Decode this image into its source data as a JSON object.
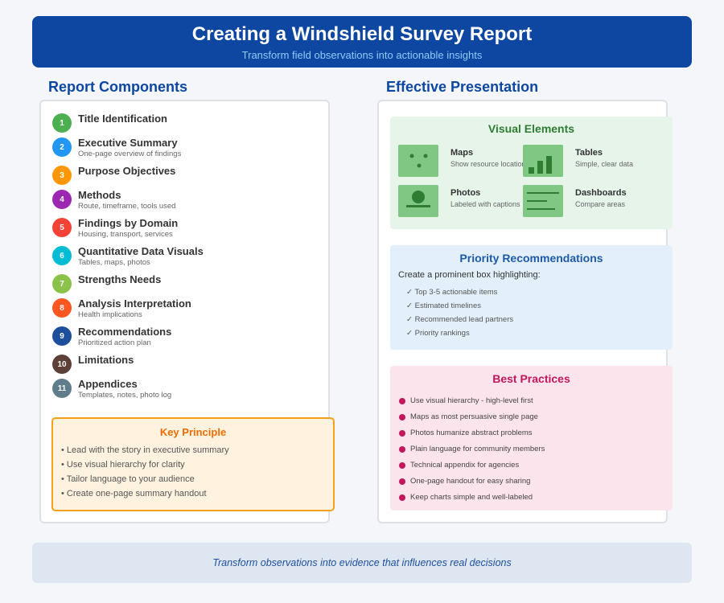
{
  "header": {
    "title": "Creating a Windshield Survey Report",
    "subtitle": "Transform field observations into actionable insights"
  },
  "left": {
    "heading": "Report Components",
    "components": [
      {
        "num": "1",
        "title": "Title Identification",
        "sub": "",
        "color": "#4caf50"
      },
      {
        "num": "2",
        "title": "Executive Summary",
        "sub": "One-page overview of findings",
        "color": "#2196f3"
      },
      {
        "num": "3",
        "title": "Purpose Objectives",
        "sub": "",
        "color": "#ff9800"
      },
      {
        "num": "4",
        "title": "Methods",
        "sub": "Route, timeframe, tools used",
        "color": "#9c27b0"
      },
      {
        "num": "5",
        "title": "Findings by Domain",
        "sub": "Housing, transport, services",
        "color": "#f44336"
      },
      {
        "num": "6",
        "title": "Quantitative Data Visuals",
        "sub": "Tables, maps, photos",
        "color": "#00bcd4"
      },
      {
        "num": "7",
        "title": "Strengths Needs",
        "sub": "",
        "color": "#8bc34a"
      },
      {
        "num": "8",
        "title": "Analysis Interpretation",
        "sub": "Health implications",
        "color": "#ff5722"
      },
      {
        "num": "9",
        "title": "Recommendations",
        "sub": "Prioritized action plan",
        "color": "#1e4f9c"
      },
      {
        "num": "10",
        "title": "Limitations",
        "sub": "",
        "color": "#5d4037"
      },
      {
        "num": "11",
        "title": "Appendices",
        "sub": "Templates, notes, photo log",
        "color": "#607d8b"
      }
    ],
    "key_principle": {
      "title": "Key Principle",
      "items": [
        "Lead with the story in executive summary",
        "Use visual hierarchy for clarity",
        "Tailor language to your audience",
        "Create one-page summary handout"
      ]
    }
  },
  "right": {
    "heading": "Effective Presentation",
    "visual": {
      "title": "Visual Elements",
      "items": [
        {
          "label": "Maps",
          "desc": "Show resource locations",
          "icon": "map-icon"
        },
        {
          "label": "Tables",
          "desc": "Simple, clear data",
          "icon": "bar-chart-icon"
        },
        {
          "label": "Photos",
          "desc": "Labeled with captions",
          "icon": "photo-icon"
        },
        {
          "label": "Dashboards",
          "desc": "Compare areas",
          "icon": "dashboard-icon"
        }
      ]
    },
    "priority": {
      "title": "Priority Recommendations",
      "intro": "Create a prominent box highlighting:",
      "items": [
        "Top 3-5 actionable items",
        "Estimated timelines",
        "Recommended lead partners",
        "Priority rankings"
      ]
    },
    "best": {
      "title": "Best Practices",
      "items": [
        "Use visual hierarchy - high-level first",
        "Maps as most persuasive single page",
        "Photos humanize abstract problems",
        "Plain language for community members",
        "Technical appendix for agencies",
        "One-page handout for easy sharing",
        "Keep charts simple and well-labeled"
      ]
    }
  },
  "footer": {
    "text": "Transform observations into evidence that influences real decisions"
  }
}
